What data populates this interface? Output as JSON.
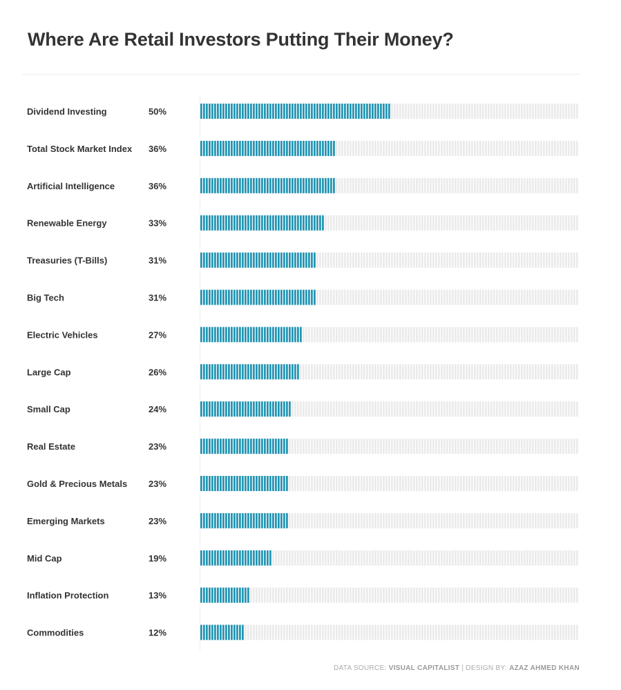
{
  "title": "Where Are Retail Investors Putting Their Money?",
  "footer": {
    "source_prefix": "DATA SOURCE:",
    "source_name": "VISUAL CAPITALIST",
    "separator": "| DESIGN BY:",
    "designer": "AZAZ AHMED KHAN"
  },
  "colors": {
    "bar": "#2596b4",
    "track": "#ebebeb",
    "text": "#333333"
  },
  "chart_data": {
    "type": "bar",
    "orientation": "horizontal",
    "categories": [
      "Dividend Investing",
      "Total Stock Market Index",
      "Artificial Intelligence",
      "Renewable Energy",
      "Treasuries (T-Bills)",
      "Big Tech",
      "Electric Vehicles",
      "Large Cap",
      "Small Cap",
      "Real Estate",
      "Gold & Precious Metals",
      "Emerging Markets",
      "Mid Cap",
      "Inflation Protection",
      "Commodities"
    ],
    "values": [
      50,
      36,
      36,
      33,
      31,
      31,
      27,
      26,
      24,
      23,
      23,
      23,
      19,
      13,
      12
    ],
    "value_labels": [
      "50%",
      "36%",
      "36%",
      "33%",
      "31%",
      "31%",
      "27%",
      "26%",
      "24%",
      "23%",
      "23%",
      "23%",
      "19%",
      "13%",
      "12%"
    ],
    "xlim": [
      0,
      100
    ],
    "unit": "%",
    "grid": false,
    "legend": "none"
  }
}
